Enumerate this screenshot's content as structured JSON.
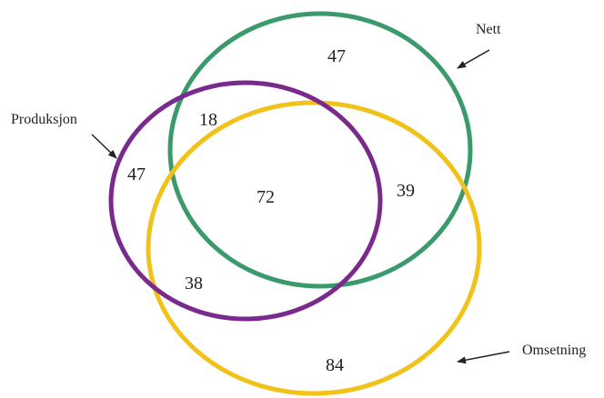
{
  "sets": {
    "nett": {
      "label": "Nett",
      "color": "#3a9a6c"
    },
    "produksjon": {
      "label": "Produksjon",
      "color": "#7a2a8c"
    },
    "omsetning": {
      "label": "Omsetning",
      "color": "#f1c21a"
    }
  },
  "regions": {
    "nett_only": "47",
    "produksjon_only": "47",
    "omsetning_only": "84",
    "nett_produksjon": "18",
    "nett_omsetning": "39",
    "produksjon_omsetning": "38",
    "all_three": "72"
  },
  "icons": {
    "pointer": "arrow-icon"
  }
}
